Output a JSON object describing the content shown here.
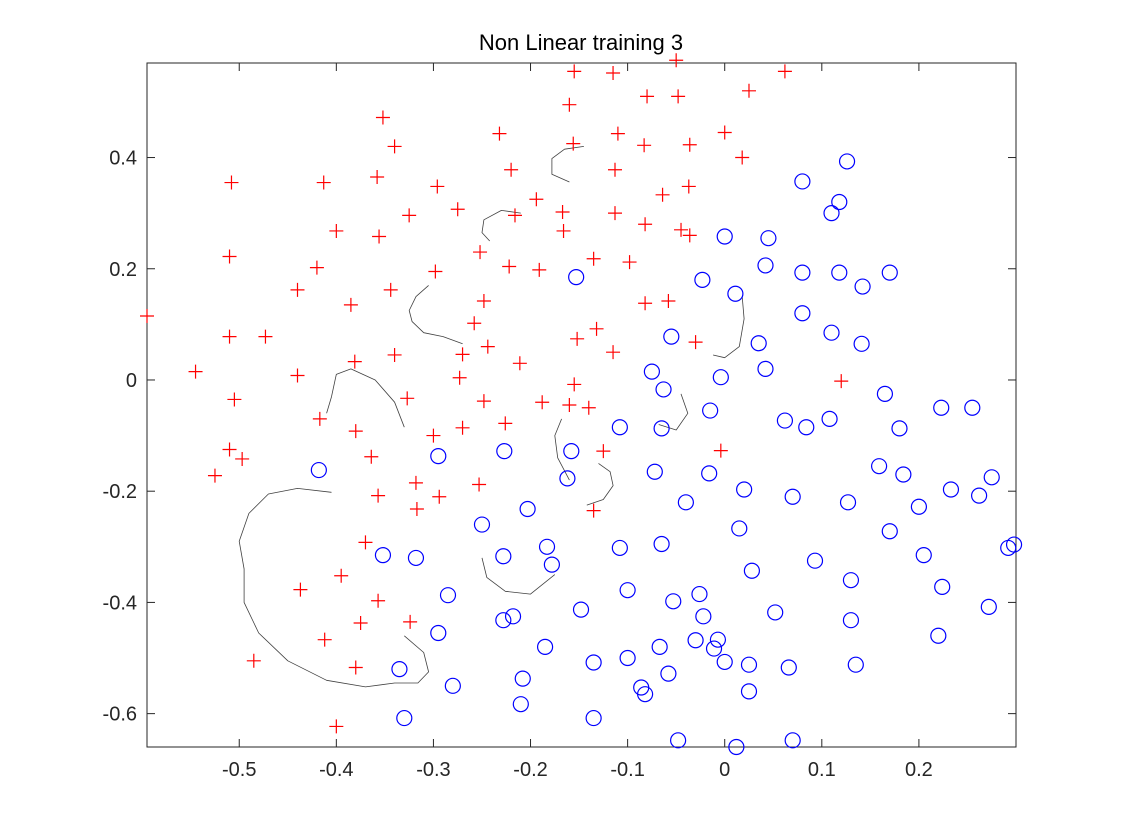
{
  "chart_data": {
    "type": "scatter",
    "title": "Non Linear training 3",
    "xlabel": "",
    "ylabel": "",
    "xlim": [
      -0.595,
      0.3
    ],
    "ylim": [
      -0.66,
      0.57
    ],
    "grid": false,
    "xticks": [
      -0.5,
      -0.4,
      -0.3,
      -0.2,
      -0.1,
      0,
      0.1,
      0.2
    ],
    "xtick_labels": [
      "-0.5",
      "-0.4",
      "-0.3",
      "-0.2",
      "-0.1",
      "0",
      "0.1",
      "0.2"
    ],
    "yticks": [
      -0.6,
      -0.4,
      -0.2,
      0,
      0.2,
      0.4
    ],
    "ytick_labels": [
      "-0.6",
      "-0.4",
      "-0.2",
      "0",
      "0.2",
      "0.4"
    ],
    "colors": {
      "plus": "#ff0000",
      "circle": "#0000ff",
      "boundary": "#000000"
    },
    "series": [
      {
        "marker": "plus",
        "color": "#ff0000",
        "points": [
          [
            -0.155,
            0.555
          ],
          [
            -0.115,
            0.552
          ],
          [
            -0.05,
            0.575
          ],
          [
            0.062,
            0.555
          ],
          [
            -0.08,
            0.51
          ],
          [
            -0.048,
            0.51
          ],
          [
            0.025,
            0.52
          ],
          [
            -0.16,
            0.495
          ],
          [
            -0.352,
            0.472
          ],
          [
            -0.232,
            0.443
          ],
          [
            -0.11,
            0.443
          ],
          [
            0.0,
            0.445
          ],
          [
            -0.34,
            0.42
          ],
          [
            -0.156,
            0.425
          ],
          [
            -0.083,
            0.422
          ],
          [
            -0.036,
            0.423
          ],
          [
            0.018,
            0.4
          ],
          [
            -0.22,
            0.378
          ],
          [
            -0.113,
            0.378
          ],
          [
            -0.508,
            0.355
          ],
          [
            -0.413,
            0.355
          ],
          [
            -0.358,
            0.365
          ],
          [
            -0.296,
            0.348
          ],
          [
            -0.037,
            0.348
          ],
          [
            -0.194,
            0.325
          ],
          [
            -0.064,
            0.333
          ],
          [
            -0.325,
            0.296
          ],
          [
            -0.275,
            0.307
          ],
          [
            -0.216,
            0.296
          ],
          [
            -0.167,
            0.302
          ],
          [
            -0.113,
            0.3
          ],
          [
            -0.082,
            0.28
          ],
          [
            -0.045,
            0.27
          ],
          [
            -0.4,
            0.268
          ],
          [
            -0.356,
            0.258
          ],
          [
            -0.166,
            0.268
          ],
          [
            -0.036,
            0.26
          ],
          [
            -0.51,
            0.222
          ],
          [
            -0.252,
            0.23
          ],
          [
            -0.135,
            0.218
          ],
          [
            -0.098,
            0.212
          ],
          [
            -0.42,
            0.202
          ],
          [
            -0.298,
            0.195
          ],
          [
            -0.222,
            0.204
          ],
          [
            -0.191,
            0.198
          ],
          [
            -0.44,
            0.162
          ],
          [
            -0.344,
            0.162
          ],
          [
            -0.248,
            0.142
          ],
          [
            -0.082,
            0.138
          ],
          [
            -0.058,
            0.142
          ],
          [
            -0.385,
            0.135
          ],
          [
            -0.595,
            0.115
          ],
          [
            -0.258,
            0.102
          ],
          [
            -0.132,
            0.092
          ],
          [
            -0.51,
            0.078
          ],
          [
            -0.473,
            0.078
          ],
          [
            -0.152,
            0.074
          ],
          [
            -0.244,
            0.06
          ],
          [
            -0.27,
            0.046
          ],
          [
            -0.34,
            0.045
          ],
          [
            -0.381,
            0.033
          ],
          [
            -0.211,
            0.03
          ],
          [
            -0.115,
            0.05
          ],
          [
            -0.03,
            0.068
          ],
          [
            -0.545,
            0.015
          ],
          [
            -0.44,
            0.008
          ],
          [
            -0.273,
            0.004
          ],
          [
            -0.155,
            -0.008
          ],
          [
            0.12,
            -0.002
          ],
          [
            -0.505,
            -0.035
          ],
          [
            -0.327,
            -0.033
          ],
          [
            -0.248,
            -0.038
          ],
          [
            -0.188,
            -0.04
          ],
          [
            -0.16,
            -0.045
          ],
          [
            -0.14,
            -0.05
          ],
          [
            -0.417,
            -0.07
          ],
          [
            -0.226,
            -0.078
          ],
          [
            -0.38,
            -0.092
          ],
          [
            -0.3,
            -0.1
          ],
          [
            -0.27,
            -0.086
          ],
          [
            -0.51,
            -0.125
          ],
          [
            -0.125,
            -0.128
          ],
          [
            -0.004,
            -0.127
          ],
          [
            -0.497,
            -0.142
          ],
          [
            -0.364,
            -0.138
          ],
          [
            -0.525,
            -0.172
          ],
          [
            -0.318,
            -0.185
          ],
          [
            -0.253,
            -0.188
          ],
          [
            -0.357,
            -0.208
          ],
          [
            -0.294,
            -0.21
          ],
          [
            -0.317,
            -0.232
          ],
          [
            -0.135,
            -0.235
          ],
          [
            -0.37,
            -0.292
          ],
          [
            -0.395,
            -0.352
          ],
          [
            -0.437,
            -0.377
          ],
          [
            -0.357,
            -0.397
          ],
          [
            -0.375,
            -0.437
          ],
          [
            -0.324,
            -0.435
          ],
          [
            -0.412,
            -0.467
          ],
          [
            -0.485,
            -0.505
          ],
          [
            -0.38,
            -0.517
          ],
          [
            -0.4,
            -0.623
          ]
        ]
      },
      {
        "marker": "circle",
        "color": "#0000ff",
        "points": [
          [
            0.126,
            0.393
          ],
          [
            0.08,
            0.357
          ],
          [
            0.118,
            0.32
          ],
          [
            0.11,
            0.3
          ],
          [
            0.0,
            0.258
          ],
          [
            0.045,
            0.255
          ],
          [
            -0.153,
            0.185
          ],
          [
            -0.023,
            0.18
          ],
          [
            0.042,
            0.206
          ],
          [
            0.08,
            0.193
          ],
          [
            0.118,
            0.193
          ],
          [
            0.17,
            0.193
          ],
          [
            0.142,
            0.168
          ],
          [
            0.011,
            0.155
          ],
          [
            0.08,
            0.12
          ],
          [
            -0.055,
            0.078
          ],
          [
            0.11,
            0.085
          ],
          [
            0.141,
            0.065
          ],
          [
            0.035,
            0.066
          ],
          [
            -0.075,
            0.015
          ],
          [
            0.042,
            0.02
          ],
          [
            -0.004,
            0.005
          ],
          [
            -0.063,
            -0.017
          ],
          [
            0.165,
            -0.025
          ],
          [
            -0.015,
            -0.055
          ],
          [
            0.223,
            -0.05
          ],
          [
            0.255,
            -0.05
          ],
          [
            -0.108,
            -0.085
          ],
          [
            -0.065,
            -0.087
          ],
          [
            0.062,
            -0.073
          ],
          [
            0.084,
            -0.085
          ],
          [
            0.108,
            -0.07
          ],
          [
            0.18,
            -0.087
          ],
          [
            -0.158,
            -0.128
          ],
          [
            -0.227,
            -0.128
          ],
          [
            -0.295,
            -0.137
          ],
          [
            -0.418,
            -0.162
          ],
          [
            0.159,
            -0.155
          ],
          [
            -0.072,
            -0.165
          ],
          [
            -0.016,
            -0.168
          ],
          [
            0.184,
            -0.17
          ],
          [
            0.275,
            -0.175
          ],
          [
            -0.162,
            -0.177
          ],
          [
            0.02,
            -0.197
          ],
          [
            0.233,
            -0.197
          ],
          [
            0.262,
            -0.208
          ],
          [
            0.07,
            -0.21
          ],
          [
            -0.04,
            -0.22
          ],
          [
            0.2,
            -0.228
          ],
          [
            0.127,
            -0.22
          ],
          [
            -0.203,
            -0.232
          ],
          [
            -0.25,
            -0.26
          ],
          [
            0.015,
            -0.267
          ],
          [
            0.17,
            -0.272
          ],
          [
            -0.065,
            -0.295
          ],
          [
            -0.108,
            -0.302
          ],
          [
            -0.183,
            -0.3
          ],
          [
            0.292,
            -0.302
          ],
          [
            0.298,
            -0.296
          ],
          [
            -0.352,
            -0.315
          ],
          [
            -0.318,
            -0.32
          ],
          [
            -0.228,
            -0.317
          ],
          [
            0.205,
            -0.315
          ],
          [
            0.093,
            -0.325
          ],
          [
            -0.178,
            -0.332
          ],
          [
            0.028,
            -0.343
          ],
          [
            0.13,
            -0.36
          ],
          [
            0.224,
            -0.372
          ],
          [
            -0.1,
            -0.378
          ],
          [
            -0.026,
            -0.385
          ],
          [
            -0.285,
            -0.387
          ],
          [
            -0.053,
            -0.398
          ],
          [
            -0.148,
            -0.413
          ],
          [
            0.052,
            -0.418
          ],
          [
            -0.022,
            -0.425
          ],
          [
            0.272,
            -0.408
          ],
          [
            -0.218,
            -0.425
          ],
          [
            -0.228,
            -0.432
          ],
          [
            0.13,
            -0.432
          ],
          [
            -0.295,
            -0.455
          ],
          [
            0.22,
            -0.46
          ],
          [
            -0.03,
            -0.468
          ],
          [
            -0.007,
            -0.467
          ],
          [
            -0.185,
            -0.48
          ],
          [
            -0.067,
            -0.48
          ],
          [
            -0.011,
            -0.483
          ],
          [
            -0.1,
            -0.5
          ],
          [
            0.0,
            -0.507
          ],
          [
            0.135,
            -0.512
          ],
          [
            -0.335,
            -0.52
          ],
          [
            -0.135,
            -0.508
          ],
          [
            0.025,
            -0.512
          ],
          [
            0.066,
            -0.517
          ],
          [
            -0.058,
            -0.528
          ],
          [
            -0.208,
            -0.537
          ],
          [
            -0.28,
            -0.55
          ],
          [
            -0.086,
            -0.553
          ],
          [
            0.025,
            -0.56
          ],
          [
            -0.082,
            -0.565
          ],
          [
            -0.21,
            -0.583
          ],
          [
            -0.33,
            -0.608
          ],
          [
            -0.135,
            -0.608
          ],
          [
            -0.048,
            -0.648
          ],
          [
            0.07,
            -0.648
          ],
          [
            0.012,
            -0.66
          ]
        ]
      }
    ],
    "boundaries": [
      [
        [
          -0.405,
          -0.202
        ],
        [
          -0.44,
          -0.195
        ],
        [
          -0.47,
          -0.205
        ],
        [
          -0.49,
          -0.24
        ],
        [
          -0.5,
          -0.29
        ],
        [
          -0.495,
          -0.34
        ],
        [
          -0.495,
          -0.4
        ],
        [
          -0.48,
          -0.455
        ],
        [
          -0.45,
          -0.505
        ],
        [
          -0.41,
          -0.54
        ],
        [
          -0.37,
          -0.552
        ],
        [
          -0.34,
          -0.545
        ],
        [
          -0.316,
          -0.545
        ],
        [
          -0.305,
          -0.525
        ],
        [
          -0.31,
          -0.49
        ],
        [
          -0.33,
          -0.46
        ]
      ],
      [
        [
          -0.41,
          -0.06
        ],
        [
          -0.405,
          -0.03
        ],
        [
          -0.4,
          0.01
        ],
        [
          -0.385,
          0.02
        ],
        [
          -0.36,
          0.0
        ],
        [
          -0.34,
          -0.04
        ],
        [
          -0.33,
          -0.085
        ]
      ],
      [
        [
          -0.305,
          0.17
        ],
        [
          -0.318,
          0.15
        ],
        [
          -0.325,
          0.125
        ],
        [
          -0.322,
          0.105
        ],
        [
          -0.31,
          0.085
        ],
        [
          -0.29,
          0.078
        ],
        [
          -0.27,
          0.065
        ]
      ],
      [
        [
          -0.21,
          0.3
        ],
        [
          -0.23,
          0.305
        ],
        [
          -0.248,
          0.288
        ],
        [
          -0.25,
          0.265
        ],
        [
          -0.242,
          0.25
        ]
      ],
      [
        [
          -0.145,
          0.42
        ],
        [
          -0.165,
          0.415
        ],
        [
          -0.178,
          0.398
        ],
        [
          -0.178,
          0.37
        ],
        [
          -0.16,
          0.356
        ]
      ],
      [
        [
          -0.142,
          -0.225
        ],
        [
          -0.125,
          -0.215
        ],
        [
          -0.115,
          -0.19
        ],
        [
          -0.118,
          -0.165
        ],
        [
          -0.13,
          -0.15
        ]
      ],
      [
        [
          -0.25,
          -0.32
        ],
        [
          -0.245,
          -0.355
        ],
        [
          -0.226,
          -0.38
        ],
        [
          -0.2,
          -0.385
        ],
        [
          -0.175,
          -0.35
        ]
      ],
      [
        [
          -0.16,
          -0.18
        ],
        [
          -0.172,
          -0.14
        ],
        [
          -0.175,
          -0.1
        ],
        [
          -0.168,
          -0.07
        ]
      ],
      [
        [
          -0.068,
          -0.08
        ],
        [
          -0.05,
          -0.09
        ],
        [
          -0.038,
          -0.06
        ],
        [
          -0.045,
          -0.025
        ]
      ],
      [
        [
          0.018,
          0.15
        ],
        [
          0.02,
          0.11
        ],
        [
          0.015,
          0.06
        ],
        [
          0.0,
          0.04
        ],
        [
          -0.012,
          0.045
        ]
      ]
    ]
  }
}
